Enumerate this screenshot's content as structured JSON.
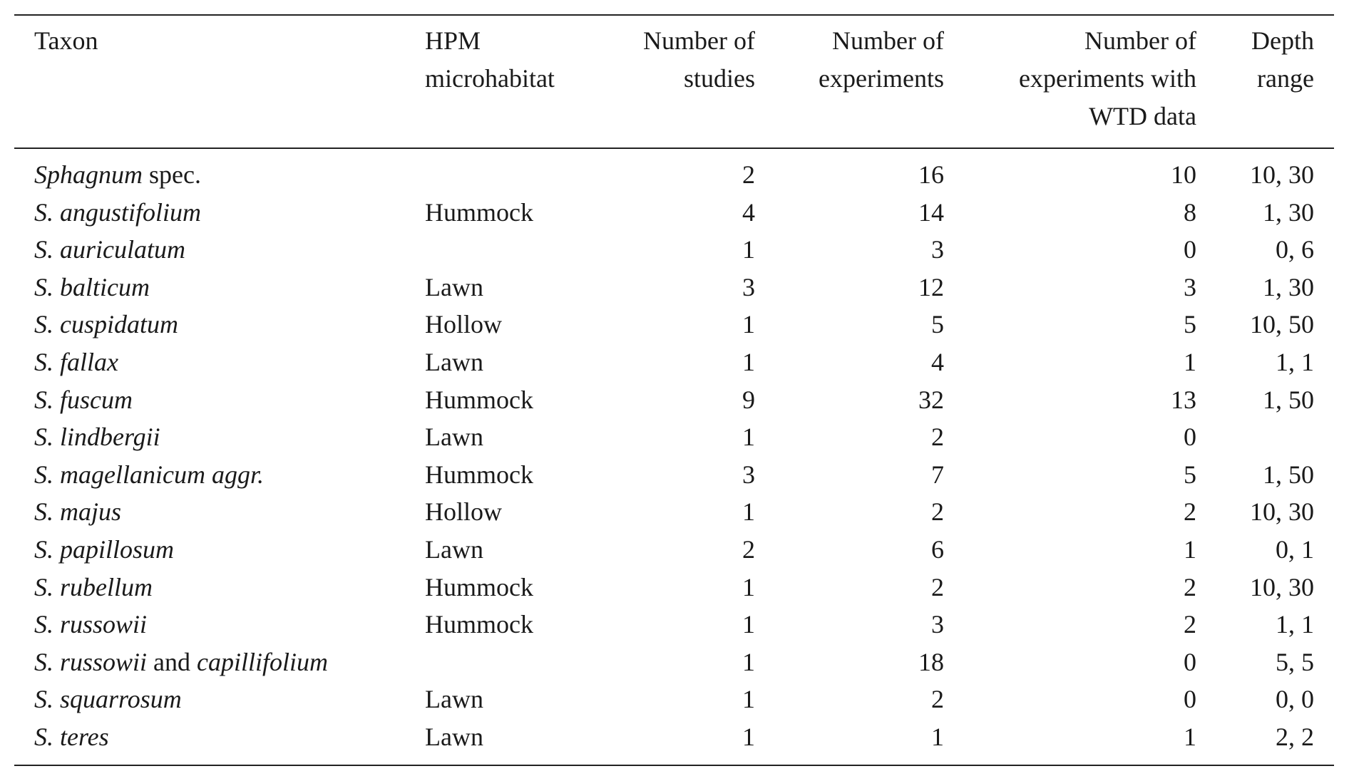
{
  "table": {
    "headers": [
      [
        "Taxon"
      ],
      [
        "HPM",
        "microhabitat"
      ],
      [
        "Number of",
        "studies"
      ],
      [
        "Number of",
        "experiments"
      ],
      [
        "Number of",
        "experiments with",
        "WTD data"
      ],
      [
        "Depth",
        "range"
      ]
    ],
    "rows": [
      {
        "taxon": [
          {
            "text": "Sphagnum",
            "italic": true
          },
          {
            "text": " spec.",
            "italic": false
          }
        ],
        "hpm": "",
        "studies": "2",
        "experiments": "16",
        "wtd": "10",
        "depth": "10, 30"
      },
      {
        "taxon": [
          {
            "text": "S. angustifolium",
            "italic": true
          }
        ],
        "hpm": "Hummock",
        "studies": "4",
        "experiments": "14",
        "wtd": "8",
        "depth": "1, 30"
      },
      {
        "taxon": [
          {
            "text": "S. auriculatum",
            "italic": true
          }
        ],
        "hpm": "",
        "studies": "1",
        "experiments": "3",
        "wtd": "0",
        "depth": "0, 6"
      },
      {
        "taxon": [
          {
            "text": "S. balticum",
            "italic": true
          }
        ],
        "hpm": "Lawn",
        "studies": "3",
        "experiments": "12",
        "wtd": "3",
        "depth": "1, 30"
      },
      {
        "taxon": [
          {
            "text": "S. cuspidatum",
            "italic": true
          }
        ],
        "hpm": "Hollow",
        "studies": "1",
        "experiments": "5",
        "wtd": "5",
        "depth": "10, 50"
      },
      {
        "taxon": [
          {
            "text": "S. fallax",
            "italic": true
          }
        ],
        "hpm": "Lawn",
        "studies": "1",
        "experiments": "4",
        "wtd": "1",
        "depth": "1, 1"
      },
      {
        "taxon": [
          {
            "text": "S. fuscum",
            "italic": true
          }
        ],
        "hpm": "Hummock",
        "studies": "9",
        "experiments": "32",
        "wtd": "13",
        "depth": "1, 50"
      },
      {
        "taxon": [
          {
            "text": "S. lindbergii",
            "italic": true
          }
        ],
        "hpm": "Lawn",
        "studies": "1",
        "experiments": "2",
        "wtd": "0",
        "depth": ""
      },
      {
        "taxon": [
          {
            "text": "S. magellanicum aggr.",
            "italic": true
          }
        ],
        "hpm": "Hummock",
        "studies": "3",
        "experiments": "7",
        "wtd": "5",
        "depth": "1, 50"
      },
      {
        "taxon": [
          {
            "text": "S. majus",
            "italic": true
          }
        ],
        "hpm": "Hollow",
        "studies": "1",
        "experiments": "2",
        "wtd": "2",
        "depth": "10, 30"
      },
      {
        "taxon": [
          {
            "text": "S. papillosum",
            "italic": true
          }
        ],
        "hpm": "Lawn",
        "studies": "2",
        "experiments": "6",
        "wtd": "1",
        "depth": "0, 1"
      },
      {
        "taxon": [
          {
            "text": "S. rubellum",
            "italic": true
          }
        ],
        "hpm": "Hummock",
        "studies": "1",
        "experiments": "2",
        "wtd": "2",
        "depth": "10, 30"
      },
      {
        "taxon": [
          {
            "text": "S. russowii",
            "italic": true
          }
        ],
        "hpm": "Hummock",
        "studies": "1",
        "experiments": "3",
        "wtd": "2",
        "depth": "1, 1"
      },
      {
        "taxon": [
          {
            "text": "S. russowii",
            "italic": true
          },
          {
            "text": " and ",
            "italic": false
          },
          {
            "text": "capillifolium",
            "italic": true
          }
        ],
        "hpm": "",
        "studies": "1",
        "experiments": "18",
        "wtd": "0",
        "depth": "5, 5"
      },
      {
        "taxon": [
          {
            "text": "S. squarrosum",
            "italic": true
          }
        ],
        "hpm": "Lawn",
        "studies": "1",
        "experiments": "2",
        "wtd": "0",
        "depth": "0, 0"
      },
      {
        "taxon": [
          {
            "text": "S. teres",
            "italic": true
          }
        ],
        "hpm": "Lawn",
        "studies": "1",
        "experiments": "1",
        "wtd": "1",
        "depth": "2, 2"
      }
    ]
  }
}
